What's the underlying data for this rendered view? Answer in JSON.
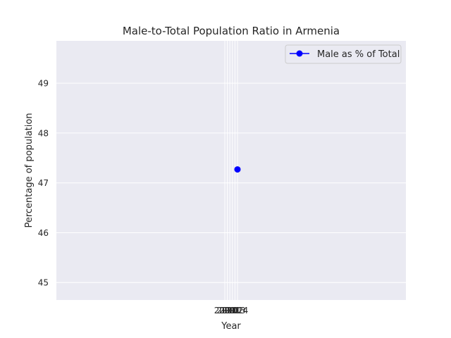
{
  "chart_data": {
    "type": "line",
    "title": "Male-to-Total Population Ratio in Armenia",
    "xlabel": "Year",
    "ylabel": "Percentage of population",
    "x": [
      "2009",
      "2010",
      "2011",
      "2012",
      "2013",
      "2014"
    ],
    "series": [
      {
        "name": "Male as % of Total",
        "color": "#0000ff",
        "marker": "circle",
        "values": [
          null,
          null,
          null,
          null,
          null,
          47.27
        ]
      }
    ],
    "yticks": [
      45,
      46,
      47,
      48,
      49
    ],
    "ylim": [
      44.65,
      49.85
    ],
    "grid": true,
    "legend_position": "top-right",
    "background": "#eaeaf2"
  }
}
